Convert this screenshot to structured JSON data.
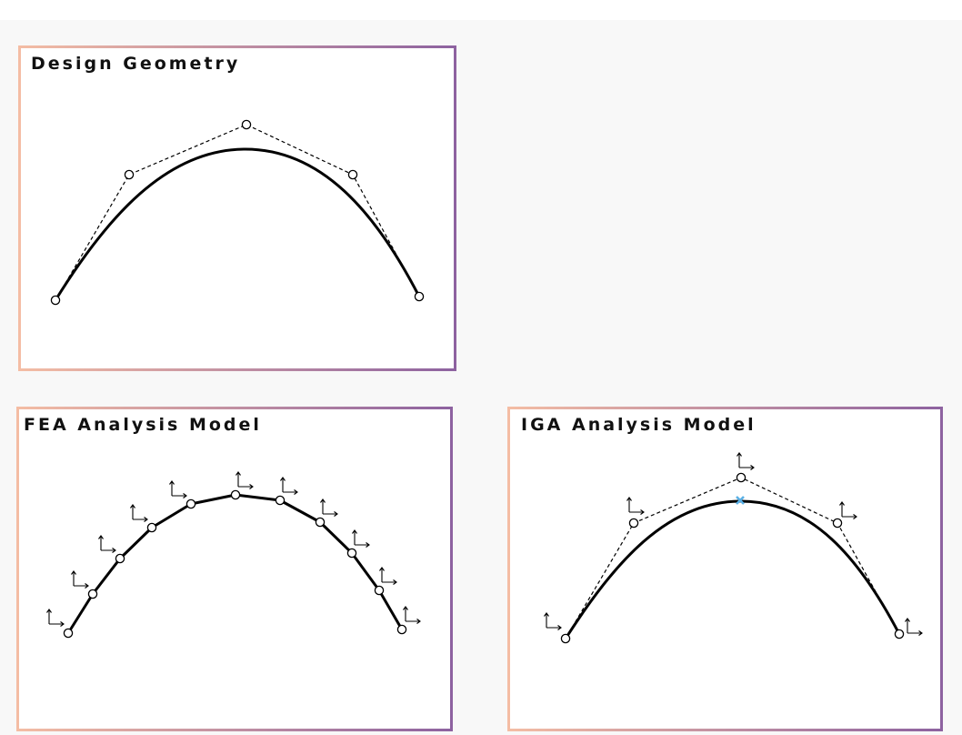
{
  "colors": {
    "frame_gradient_start": "#f4bda4",
    "frame_gradient_end": "#8d62a0",
    "curve": "#000000",
    "control_polygon": "#000000",
    "control_point_fill": "#ffffff",
    "marker": "#5ab0e6"
  },
  "panels": {
    "design": {
      "title": "Design Geometry"
    },
    "fea": {
      "title": "FEA Analysis Model"
    },
    "iga": {
      "title": "IGA Analysis Model"
    }
  },
  "icons": {
    "control_point": "circle-icon",
    "local_axes": "axis-arrows-icon",
    "evaluation_point": "x-marker-icon"
  }
}
